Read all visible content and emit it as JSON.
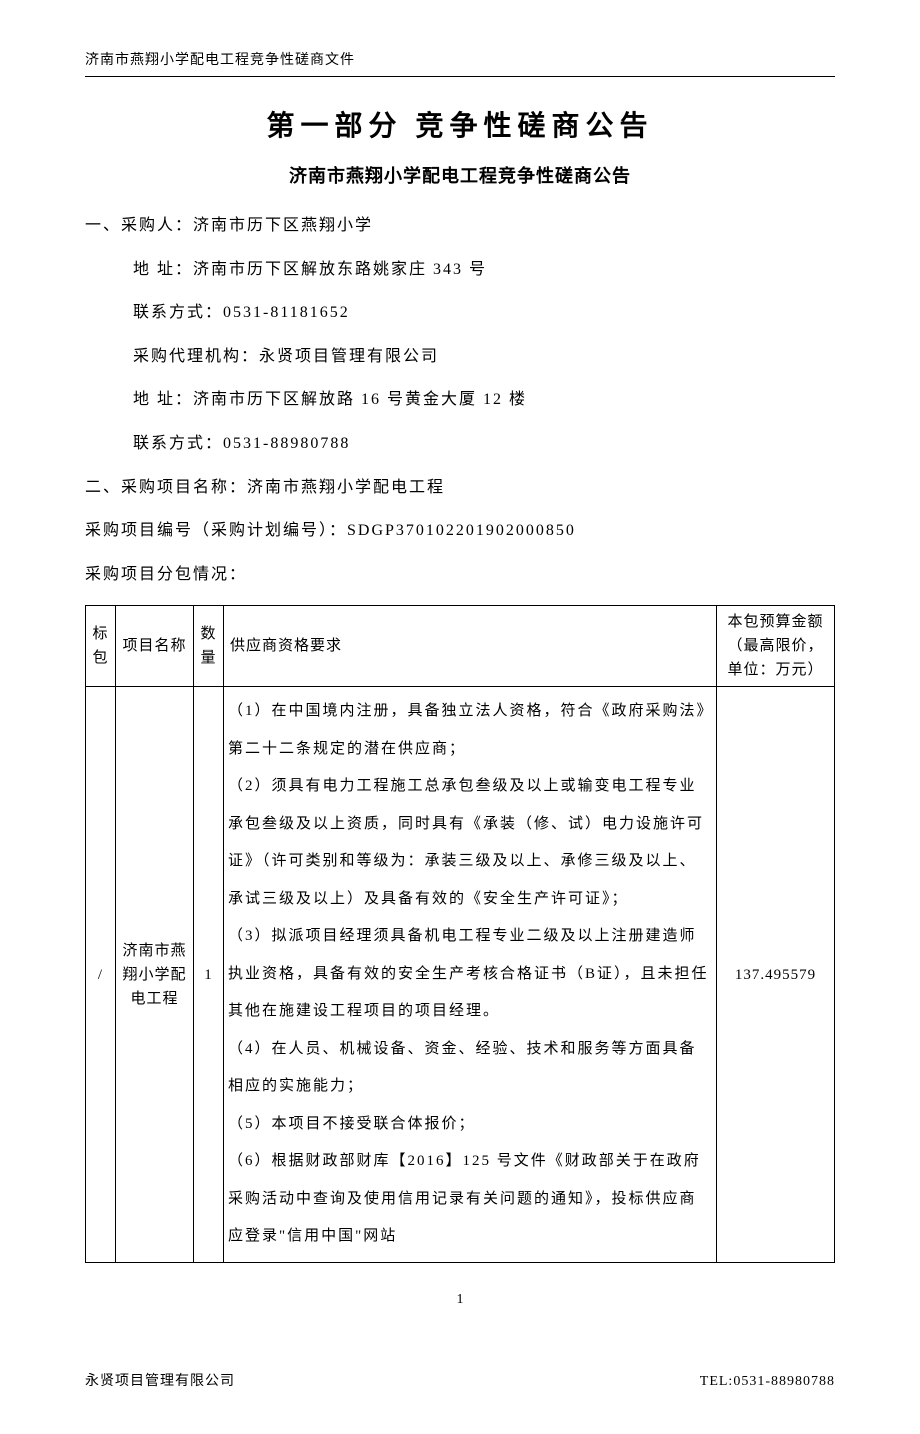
{
  "header": "济南市燕翔小学配电工程竞争性磋商文件",
  "main_title": "第一部分  竞争性磋商公告",
  "sub_title": "济南市燕翔小学配电工程竞争性磋商公告",
  "section1": {
    "purchaser_label": "一、采购人：济南市历下区燕翔小学",
    "address": "地  址：济南市历下区解放东路姚家庄 343 号",
    "contact": "联系方式：0531-81181652",
    "agency": "采购代理机构：永贤项目管理有限公司",
    "agency_address": "地        址：济南市历下区解放路 16 号黄金大厦 12 楼",
    "agency_contact": "联系方式：0531-88980788"
  },
  "section2": {
    "project_name": "二、采购项目名称：济南市燕翔小学配电工程",
    "project_number": "采购项目编号（采购计划编号）：SDGP370102201902000850",
    "package_info": "采购项目分包情况："
  },
  "table": {
    "headers": {
      "bid": "标包",
      "name": "项目名称",
      "qty": "数量",
      "requirements": "供应商资格要求",
      "budget": "本包预算金额（最高限价，单位：万元）"
    },
    "row": {
      "bid": "/",
      "name": "济南市燕翔小学配电工程",
      "qty": "1",
      "requirements": "（1）在中国境内注册，具备独立法人资格，符合《政府采购法》第二十二条规定的潜在供应商；\n（2）须具有电力工程施工总承包叁级及以上或输变电工程专业承包叁级及以上资质，同时具有《承装（修、试）电力设施许可证》（许可类别和等级为：承装三级及以上、承修三级及以上、承试三级及以上）及具备有效的《安全生产许可证》；\n（3）拟派项目经理须具备机电工程专业二级及以上注册建造师执业资格，具备有效的安全生产考核合格证书（B证），且未担任其他在施建设工程项目的项目经理。\n（4）在人员、机械设备、资金、经验、技术和服务等方面具备相应的实施能力；\n（5）本项目不接受联合体报价；\n（6）根据财政部财库【2016】125 号文件《财政部关于在政府采购活动中查询及使用信用记录有关问题的通知》，投标供应商应登录\"信用中国\"网站",
      "budget": "137.495579"
    }
  },
  "page_number": "1",
  "footer": {
    "left": "永贤项目管理有限公司",
    "right": "TEL:0531-88980788"
  }
}
